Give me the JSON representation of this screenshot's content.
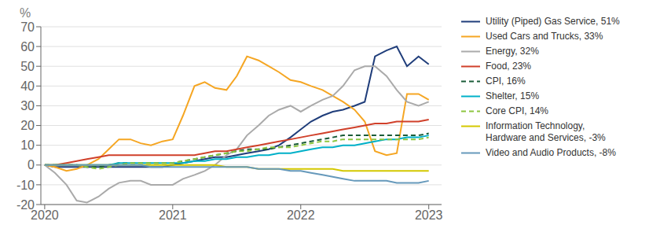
{
  "chart_data": {
    "type": "line",
    "ylabel": "%",
    "xlim": [
      2019.97,
      2023.1
    ],
    "xticks": [
      2020,
      2021,
      2022,
      2023
    ],
    "ylim": [
      -20,
      70
    ],
    "yticks": [
      -20,
      -10,
      0,
      10,
      20,
      30,
      40,
      50,
      60,
      70
    ],
    "grid": "y",
    "legend": "right",
    "x": [
      2020.0,
      2020.08,
      2020.17,
      2020.25,
      2020.33,
      2020.42,
      2020.5,
      2020.58,
      2020.67,
      2020.75,
      2020.83,
      2020.92,
      2021.0,
      2021.08,
      2021.17,
      2021.25,
      2021.33,
      2021.42,
      2021.5,
      2021.58,
      2021.67,
      2021.75,
      2021.83,
      2021.92,
      2022.0,
      2022.08,
      2022.17,
      2022.25,
      2022.33,
      2022.42,
      2022.5,
      2022.58,
      2022.67,
      2022.75,
      2022.83,
      2022.92,
      2023.0
    ],
    "series": [
      {
        "name": "Utility (Piped) Gas Service, 51%",
        "color": "#1f3d7a",
        "line_style": "solid",
        "values": [
          0,
          -1,
          -1,
          -1,
          -1,
          -1,
          -1,
          -1,
          -1,
          -1,
          -1,
          -1,
          0,
          1,
          2,
          3,
          4,
          4,
          5,
          6,
          7,
          8,
          10,
          14,
          18,
          22,
          25,
          27,
          28,
          30,
          32,
          55,
          58,
          60,
          50,
          55,
          51
        ]
      },
      {
        "name": "Used Cars and Trucks, 33%",
        "color": "#f5a623",
        "line_style": "solid",
        "values": [
          0,
          -1,
          -3,
          -2,
          0,
          3,
          8,
          13,
          13,
          11,
          10,
          12,
          13,
          25,
          40,
          42,
          39,
          38,
          45,
          55,
          53,
          50,
          47,
          43,
          42,
          40,
          38,
          35,
          32,
          28,
          22,
          7,
          5,
          6,
          36,
          36,
          33
        ]
      },
      {
        "name": "Energy, 32%",
        "color": "#aaaaaa",
        "line_style": "solid",
        "values": [
          0,
          -4,
          -10,
          -18,
          -19,
          -16,
          -12,
          -9,
          -8,
          -8,
          -10,
          -10,
          -10,
          -7,
          -5,
          -3,
          0,
          5,
          8,
          15,
          20,
          25,
          28,
          30,
          27,
          30,
          33,
          35,
          40,
          48,
          50,
          50,
          45,
          38,
          32,
          30,
          32
        ]
      },
      {
        "name": "Food, 23%",
        "color": "#d0402a",
        "line_style": "solid",
        "values": [
          0,
          0,
          1,
          2,
          3,
          4,
          5,
          5,
          5,
          5,
          5,
          5,
          5,
          5,
          5,
          6,
          7,
          7,
          8,
          9,
          10,
          11,
          12,
          13,
          14,
          15,
          16,
          17,
          18,
          19,
          20,
          21,
          21,
          22,
          22,
          22,
          23
        ]
      },
      {
        "name": "CPI, 16%",
        "color": "#1a5c38",
        "line_style": "dashed",
        "values": [
          0,
          0,
          0,
          0,
          -1,
          -1,
          0,
          1,
          1,
          1,
          1,
          1,
          1,
          2,
          3,
          4,
          5,
          6,
          7,
          8,
          8,
          8,
          9,
          10,
          11,
          12,
          13,
          14,
          15,
          15,
          15,
          15,
          15,
          15,
          15,
          15,
          16
        ]
      },
      {
        "name": "Shelter, 15%",
        "color": "#00b0c8",
        "line_style": "solid",
        "values": [
          0,
          0,
          0,
          0,
          0,
          0,
          0,
          1,
          1,
          1,
          1,
          1,
          1,
          1,
          2,
          2,
          3,
          3,
          4,
          4,
          5,
          5,
          6,
          6,
          7,
          8,
          9,
          9,
          10,
          10,
          11,
          12,
          13,
          13,
          14,
          14,
          15
        ]
      },
      {
        "name": "Core CPI, 14%",
        "color": "#8dc63f",
        "line_style": "dashed",
        "values": [
          0,
          0,
          0,
          0,
          -1,
          -2,
          -1,
          0,
          1,
          1,
          1,
          1,
          1,
          2,
          3,
          4,
          5,
          6,
          7,
          7,
          8,
          9,
          9,
          9,
          10,
          11,
          12,
          12,
          13,
          13,
          13,
          13,
          13,
          13,
          13,
          13,
          14
        ]
      },
      {
        "name": "Information Technology,\nHardware and Services, -3%",
        "color": "#d4c800",
        "line_style": "solid",
        "values": [
          0,
          0,
          0,
          0,
          0,
          0,
          0,
          0,
          0,
          0,
          0,
          0,
          0,
          0,
          0,
          0,
          0,
          -1,
          -1,
          -1,
          -2,
          -2,
          -2,
          -2,
          -2,
          -2,
          -2,
          -2,
          -3,
          -3,
          -3,
          -3,
          -3,
          -3,
          -3,
          -3,
          -3
        ]
      },
      {
        "name": "Video and Audio Products, -8%",
        "color": "#6699bb",
        "line_style": "solid",
        "values": [
          0,
          0,
          0,
          0,
          0,
          0,
          0,
          0,
          0,
          0,
          -1,
          -1,
          -1,
          -1,
          -1,
          -1,
          -1,
          -1,
          -1,
          -1,
          -2,
          -2,
          -2,
          -3,
          -3,
          -4,
          -5,
          -6,
          -7,
          -8,
          -8,
          -8,
          -8,
          -9,
          -9,
          -9,
          -8
        ]
      }
    ]
  }
}
